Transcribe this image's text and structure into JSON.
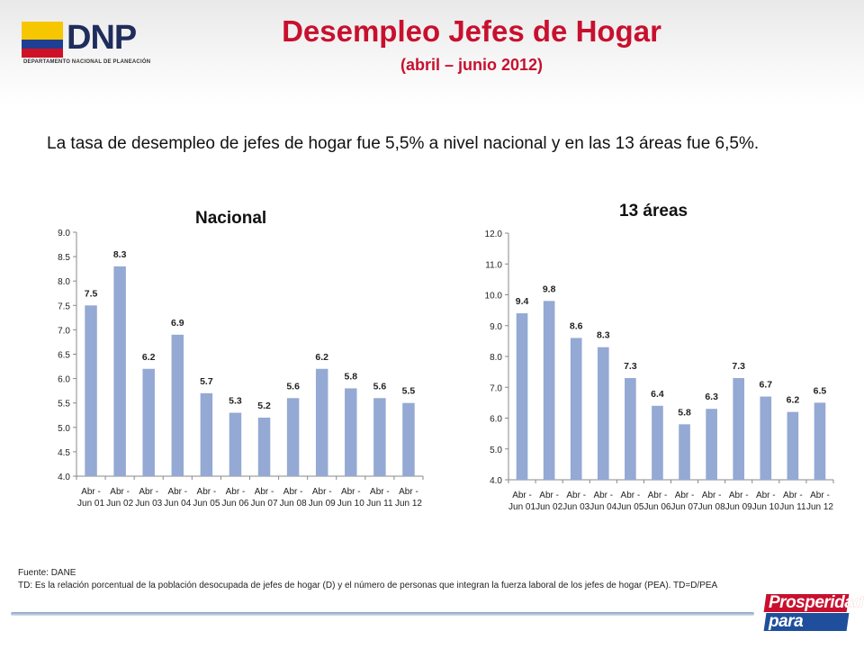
{
  "header": {
    "logo_text": "DNP",
    "logo_subtitle": "DEPARTAMENTO NACIONAL DE PLANEACIÓN",
    "title": "Desempleo Jefes de Hogar",
    "subtitle": "(abril – junio 2012)"
  },
  "intro": "La tasa de desempleo de jefes de hogar fue 5,5% a nivel nacional y en las 13 áreas fue 6,5%.",
  "footer": {
    "source": "Fuente: DANE",
    "note": "TD:  Es la relación porcentual de la población desocupada de jefes de hogar (D) y  el número de personas que integran la fuerza laboral de los jefes de hogar (PEA). TD=D/PEA"
  },
  "slogan": {
    "line1": "Prosperidad",
    "line2": "para todos"
  },
  "colors": {
    "bar": "#94a9d3",
    "title": "#c8102e",
    "axis": "#888888",
    "grid": "#d9d9d9"
  },
  "chart_data": [
    {
      "type": "bar",
      "title": "Nacional",
      "categories": [
        [
          "Abr -",
          "Jun 01"
        ],
        [
          "Abr -",
          "Jun 02"
        ],
        [
          "Abr -",
          "Jun 03"
        ],
        [
          "Abr -",
          "Jun 04"
        ],
        [
          "Abr -",
          "Jun 05"
        ],
        [
          "Abr -",
          "Jun 06"
        ],
        [
          "Abr -",
          "Jun 07"
        ],
        [
          "Abr -",
          "Jun 08"
        ],
        [
          "Abr -",
          "Jun 09"
        ],
        [
          "Abr -",
          "Jun 10"
        ],
        [
          "Abr -",
          "Jun 11"
        ],
        [
          "Abr -",
          "Jun 12"
        ]
      ],
      "values": [
        7.5,
        8.3,
        6.2,
        6.9,
        5.7,
        5.3,
        5.2,
        5.6,
        6.2,
        5.8,
        5.6,
        5.5
      ],
      "labels": [
        "7.5",
        "8.3",
        "6.2",
        "6.9",
        "5.7",
        "5.3",
        "5.2",
        "5.6",
        "6.2",
        "5.8",
        "5.6",
        "5.5"
      ],
      "ylim": [
        4.0,
        9.0
      ],
      "yticks": [
        "4.0",
        "4.5",
        "5.0",
        "5.5",
        "6.0",
        "6.5",
        "7.0",
        "7.5",
        "8.0",
        "8.5",
        "9.0"
      ],
      "grid": false
    },
    {
      "type": "bar",
      "title": "13 áreas",
      "categories": [
        [
          "Abr -",
          "Jun 01"
        ],
        [
          "Abr -",
          "Jun 02"
        ],
        [
          "Abr -",
          "Jun 03"
        ],
        [
          "Abr -",
          "Jun 04"
        ],
        [
          "Abr -",
          "Jun 05"
        ],
        [
          "Abr -",
          "Jun 06"
        ],
        [
          "Abr -",
          "Jun 07"
        ],
        [
          "Abr -",
          "Jun 08"
        ],
        [
          "Abr -",
          "Jun 09"
        ],
        [
          "Abr -",
          "Jun 10"
        ],
        [
          "Abr -",
          "Jun 11"
        ],
        [
          "Abr -",
          "Jun 12"
        ]
      ],
      "values": [
        9.4,
        9.8,
        8.6,
        8.3,
        7.3,
        6.4,
        5.8,
        6.3,
        7.3,
        6.7,
        6.2,
        6.5
      ],
      "labels": [
        "9.4",
        "9.8",
        "8.6",
        "8.3",
        "7.3",
        "6.4",
        "5.8",
        "6.3",
        "7.3",
        "6.7",
        "6.2",
        "6.5"
      ],
      "ylim": [
        4.0,
        12.0
      ],
      "yticks": [
        "4.0",
        "5.0",
        "6.0",
        "7.0",
        "8.0",
        "9.0",
        "10.0",
        "11.0",
        "12.0"
      ],
      "grid": false
    }
  ]
}
